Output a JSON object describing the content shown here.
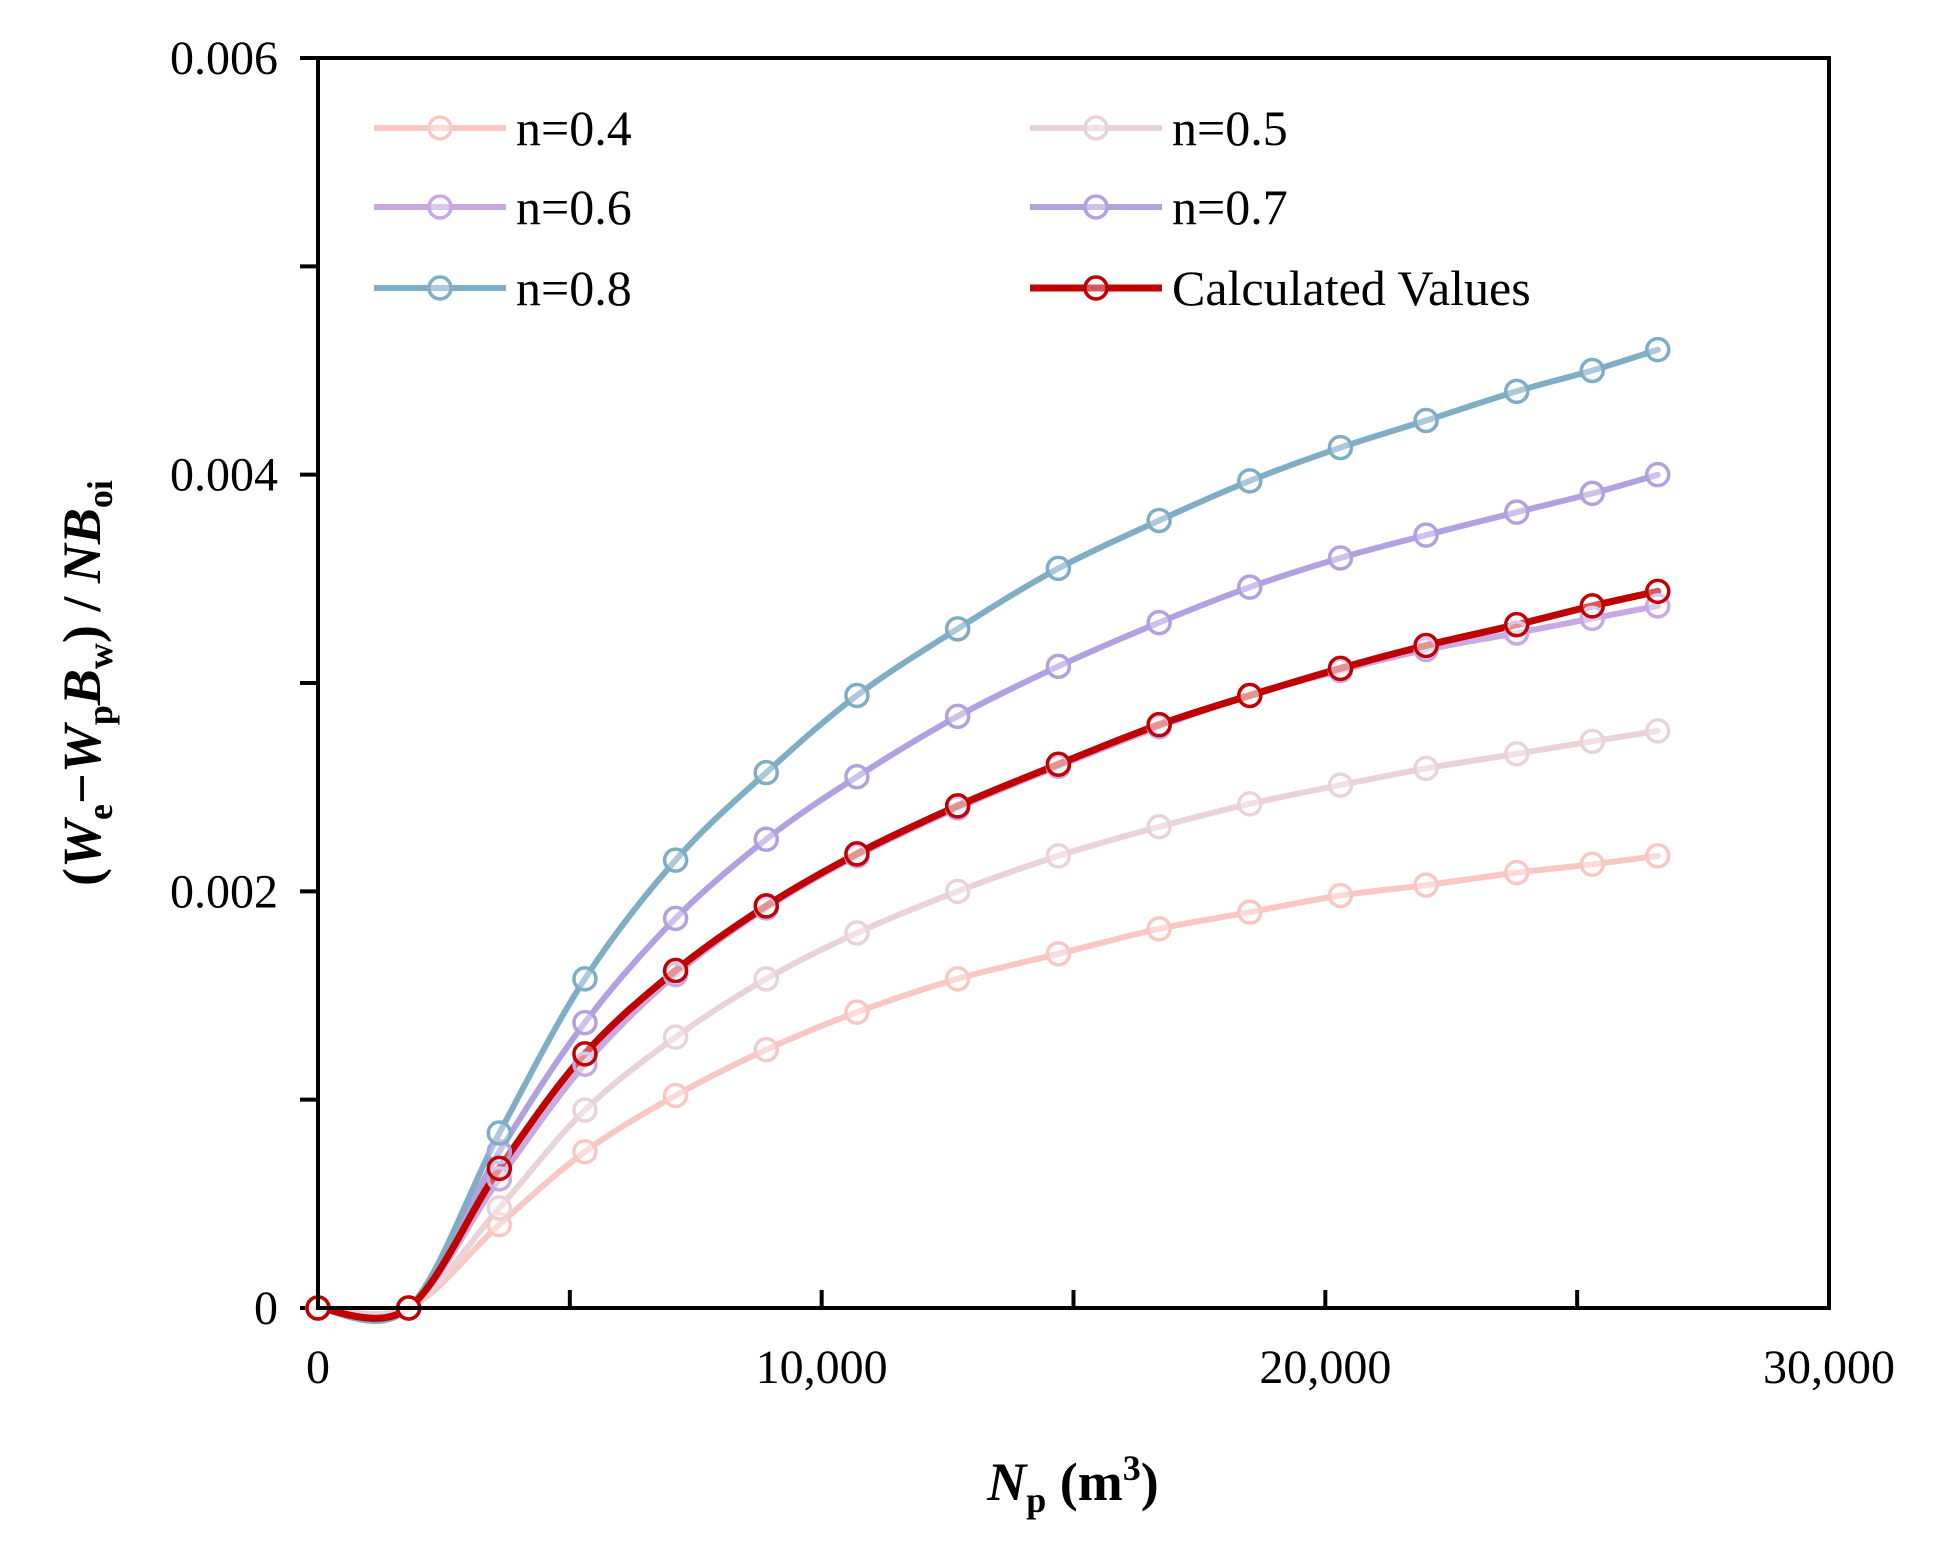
{
  "chart_data": {
    "type": "line",
    "title": "",
    "xlabel": {
      "main": "N",
      "sub": "p",
      "unit_open": " (m",
      "unit_sup": "3",
      "unit_close": ")"
    },
    "ylabel": {
      "p1": "(",
      "W1": "W",
      "s1": "e",
      "minus": "−",
      "W2": "W",
      "s2": "p",
      "B1": "B",
      "s3": "w",
      "p2": ") / ",
      "N": "N",
      "B2": "B",
      "s4": "oi"
    },
    "xlim": [
      0,
      30000
    ],
    "ylim": [
      0,
      0.006
    ],
    "x_ticks": [
      0,
      10000,
      20000,
      30000
    ],
    "x_tick_labels": [
      "0",
      "10,000",
      "20,000",
      "30,000"
    ],
    "x_minor_ticks": [
      5000,
      15000,
      25000
    ],
    "y_ticks": [
      0,
      0.002,
      0.004,
      0.006
    ],
    "y_tick_labels": [
      "0",
      "0.002",
      "0.004",
      "0.006"
    ],
    "y_minor_ticks": [
      0.001,
      0.003,
      0.005
    ],
    "legend_position": "top",
    "x": [
      0,
      1800,
      3600,
      5300,
      7100,
      8900,
      10700,
      12700,
      14700,
      16700,
      18500,
      20300,
      22000,
      23800,
      25300,
      26600
    ],
    "series": [
      {
        "name": "n=0.4",
        "color": "#f9c7c4",
        "width": 6,
        "values": [
          0,
          0,
          0.0004,
          0.00075,
          0.00102,
          0.00124,
          0.00142,
          0.00158,
          0.0017,
          0.00182,
          0.0019,
          0.00198,
          0.00203,
          0.00209,
          0.00213,
          0.00217
        ]
      },
      {
        "name": "n=0.5",
        "color": "#ead2d9",
        "width": 6,
        "values": [
          0,
          0,
          0.00048,
          0.00095,
          0.0013,
          0.00158,
          0.0018,
          0.002,
          0.00217,
          0.00231,
          0.00242,
          0.00251,
          0.00259,
          0.00266,
          0.00272,
          0.00277
        ]
      },
      {
        "name": "n=0.6",
        "color": "#c8a9e4",
        "width": 6,
        "values": [
          0,
          0,
          0.00062,
          0.00117,
          0.0016,
          0.00192,
          0.00217,
          0.0024,
          0.0026,
          0.00279,
          0.00294,
          0.00306,
          0.00316,
          0.00324,
          0.00331,
          0.00337
        ]
      },
      {
        "name": "n=0.7",
        "color": "#b1a1e0",
        "width": 6,
        "values": [
          0,
          0,
          0.00075,
          0.00137,
          0.00187,
          0.00225,
          0.00255,
          0.00284,
          0.00308,
          0.00329,
          0.00346,
          0.0036,
          0.00371,
          0.00382,
          0.00391,
          0.004
        ]
      },
      {
        "name": "n=0.8",
        "color": "#7fadc6",
        "width": 6,
        "values": [
          0,
          0,
          0.00084,
          0.00158,
          0.00215,
          0.00257,
          0.00294,
          0.00326,
          0.00355,
          0.00378,
          0.00397,
          0.00413,
          0.00426,
          0.0044,
          0.0045,
          0.0046
        ]
      },
      {
        "name": "Calculated Values",
        "color": "#c00000",
        "width": 7,
        "values": [
          0,
          0,
          0.00067,
          0.00122,
          0.00162,
          0.00193,
          0.00218,
          0.00241,
          0.00261,
          0.0028,
          0.00294,
          0.00307,
          0.00318,
          0.00328,
          0.00337,
          0.00344
        ]
      }
    ]
  }
}
